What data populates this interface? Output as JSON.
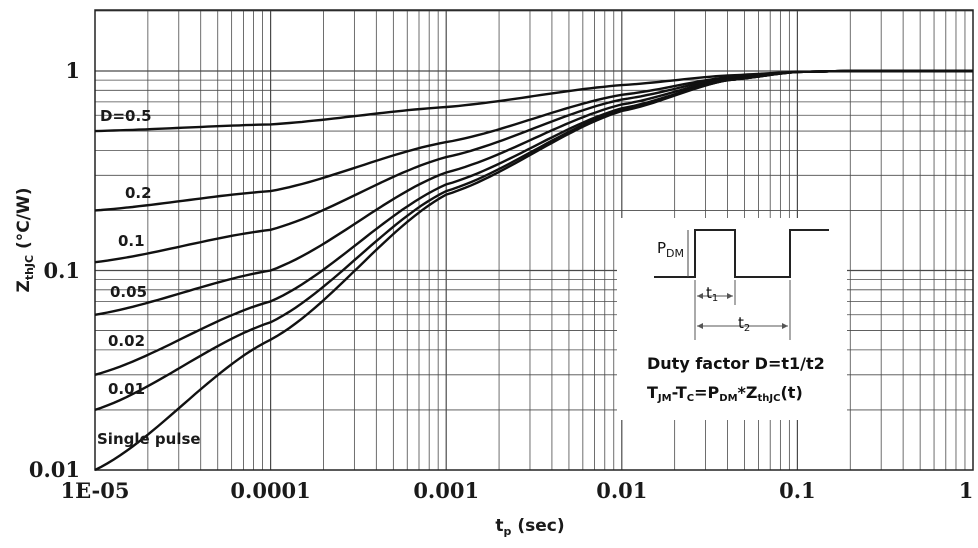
{
  "chart_data": {
    "type": "line",
    "xscale": "log",
    "yscale": "log",
    "xlim": [
      1e-05,
      1
    ],
    "ylim": [
      0.01,
      2
    ],
    "grid": true,
    "xlabel": {
      "main": "t",
      "sub": "p",
      "rest": " (sec)"
    },
    "ylabel": {
      "main": "Z",
      "sub": "thJC",
      "rest": " (°C/W)"
    },
    "x_ticks": [
      {
        "value": 1e-05,
        "label": "1E-05"
      },
      {
        "value": 0.0001,
        "label": "0.0001"
      },
      {
        "value": 0.001,
        "label": "0.001"
      },
      {
        "value": 0.01,
        "label": "0.01"
      },
      {
        "value": 0.1,
        "label": "0.1"
      },
      {
        "value": 1,
        "label": "1"
      }
    ],
    "y_ticks": [
      {
        "value": 0.01,
        "label": "0.01"
      },
      {
        "value": 0.1,
        "label": "0.1"
      },
      {
        "value": 1,
        "label": "1"
      }
    ],
    "x": [
      1e-05,
      0.0001,
      0.001,
      0.01,
      0.04,
      0.1,
      0.2,
      1
    ],
    "series": [
      {
        "name": "D=0.5",
        "values": [
          0.5,
          0.54,
          0.66,
          0.85,
          0.95,
          0.99,
          1.0,
          1.0
        ]
      },
      {
        "name": "0.2",
        "values": [
          0.2,
          0.25,
          0.44,
          0.76,
          0.93,
          0.99,
          1.0,
          1.0
        ]
      },
      {
        "name": "0.1",
        "values": [
          0.11,
          0.16,
          0.37,
          0.72,
          0.92,
          0.99,
          1.0,
          1.0
        ]
      },
      {
        "name": "0.05",
        "values": [
          0.06,
          0.1,
          0.31,
          0.68,
          0.91,
          0.99,
          1.0,
          1.0
        ]
      },
      {
        "name": "0.02",
        "values": [
          0.03,
          0.07,
          0.27,
          0.65,
          0.9,
          0.99,
          1.0,
          1.0
        ]
      },
      {
        "name": "0.01",
        "values": [
          0.02,
          0.055,
          0.25,
          0.64,
          0.9,
          0.99,
          1.0,
          1.0
        ]
      },
      {
        "name": "Single pulse",
        "values": [
          0.01,
          0.045,
          0.24,
          0.63,
          0.9,
          0.99,
          1.0,
          1.0
        ]
      }
    ],
    "inset": {
      "pdm": {
        "main": "P",
        "sub": "DM"
      },
      "t1": {
        "main": "t",
        "sub": "1"
      },
      "t2": {
        "main": "t",
        "sub": "2"
      },
      "duty_text": "Duty factor D=t1/t2",
      "formula": {
        "p1": "T",
        "s1": "JM",
        "p2": "-T",
        "s2": "C",
        "p3": "=P",
        "s3": "DM",
        "p4": "*Z",
        "s4": "thJC",
        "p5": "(t)"
      }
    }
  }
}
